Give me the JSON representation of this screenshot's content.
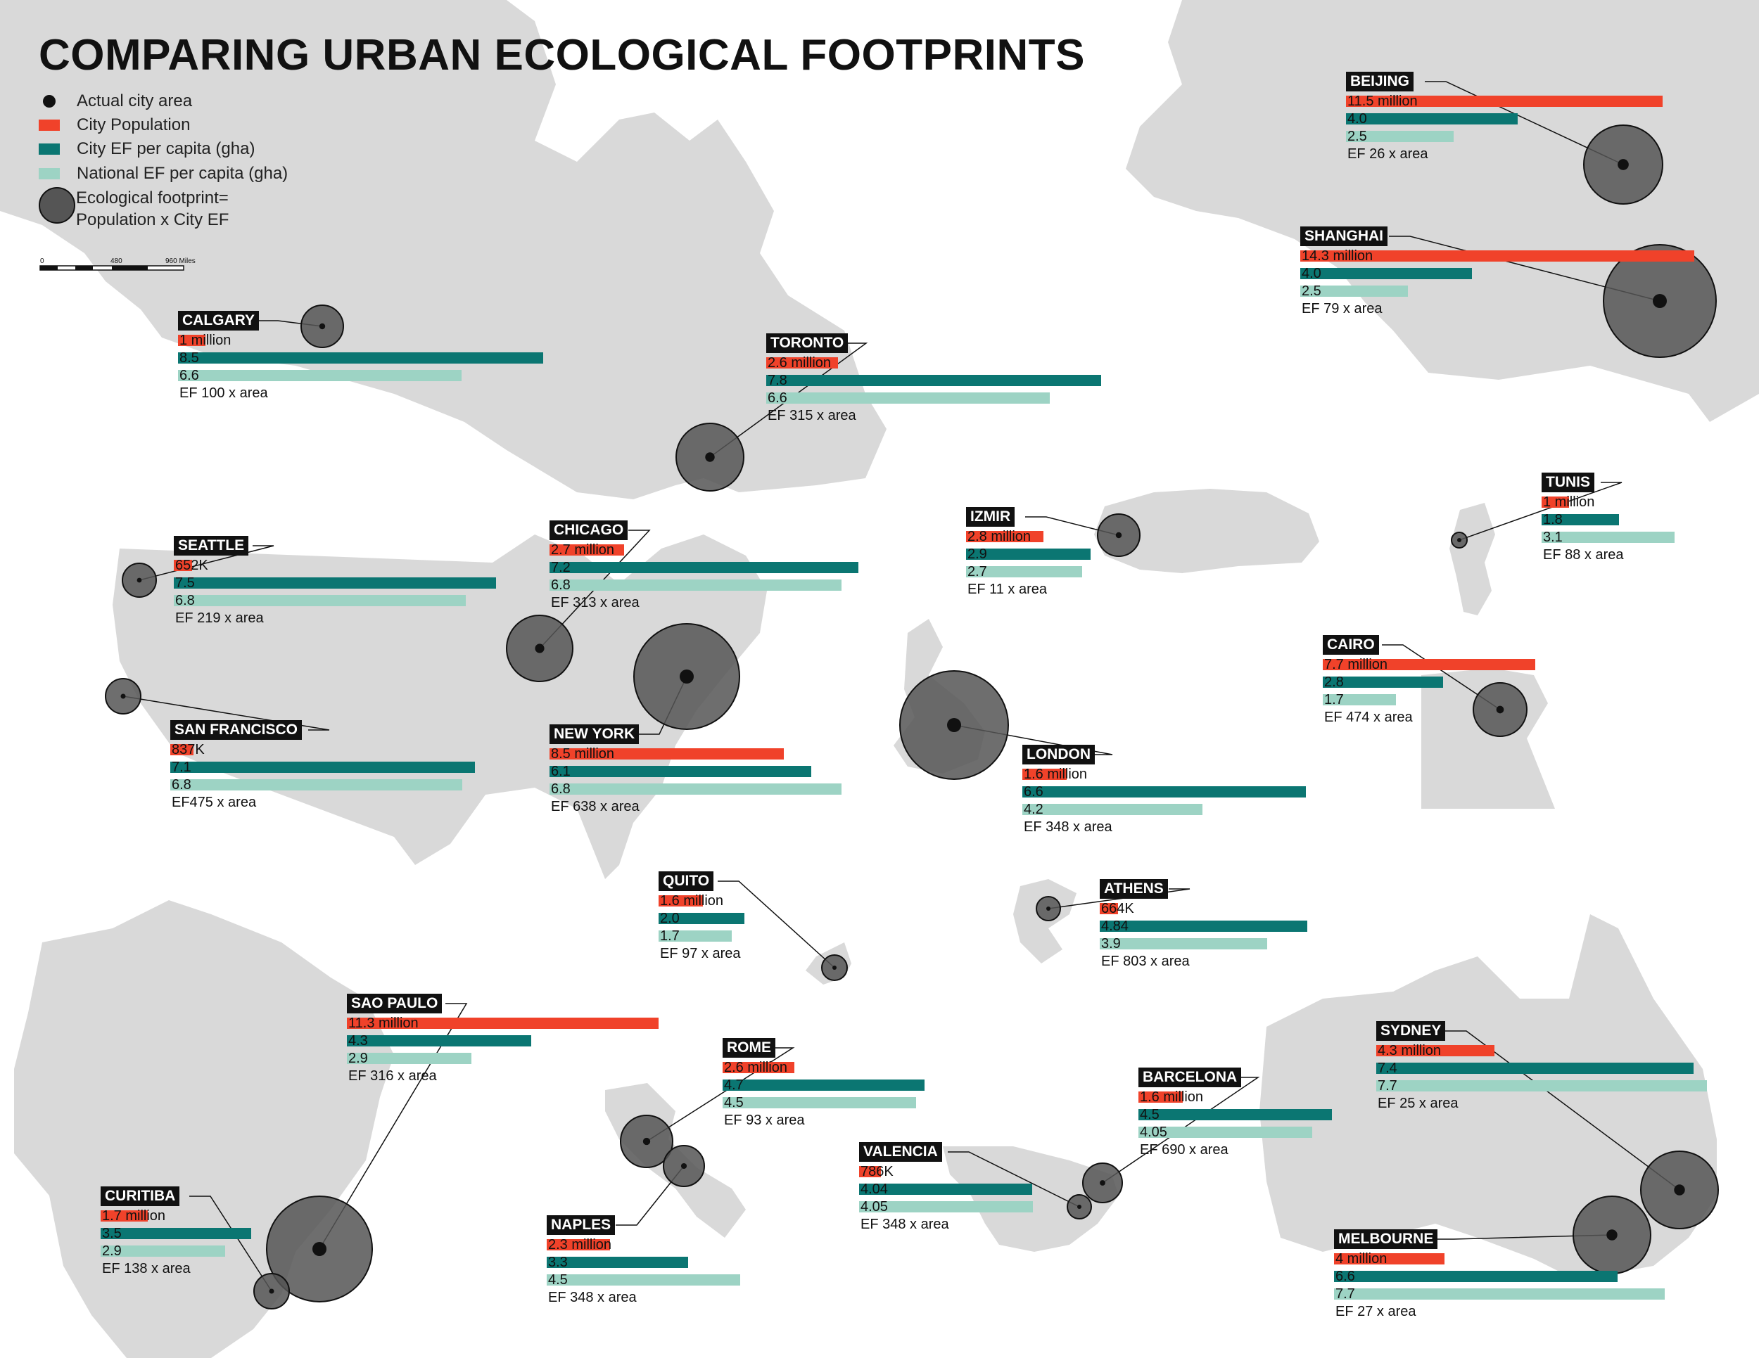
{
  "title": "COMPARING URBAN ECOLOGICAL FOOTPRINTS",
  "colors": {
    "population": "#f0422a",
    "city_ef": "#0b7672",
    "national_ef": "#9dd3c4",
    "land": "#d9d9d9",
    "footprint": "#555555",
    "label_bg": "#111111"
  },
  "legend": {
    "actual_area": "Actual city area",
    "population": "City Population",
    "city_ef": "City EF per capita (gha)",
    "national_ef": "National EF per capita (gha)",
    "footprint_line1": "Ecological footprint=",
    "footprint_line2": "Population x City EF"
  },
  "scale": {
    "t0": "0",
    "t1": "480",
    "t2": "960 Miles"
  },
  "chart_data": {
    "type": "bar",
    "title": "COMPARING URBAN ECOLOGICAL FOOTPRINTS",
    "series_names": [
      "City Population",
      "City EF per capita (gha)",
      "National EF per capita (gha)"
    ],
    "cities": [
      {
        "id": "calgary",
        "name": "CALGARY",
        "population": 1000000,
        "pop_label": "1 million",
        "city_ef": 8.5,
        "city_ef_label": "8.5",
        "national_ef": 6.6,
        "national_ef_label": "6.6",
        "ef_text": "EF 100 x area"
      },
      {
        "id": "toronto",
        "name": "TORONTO",
        "population": 2600000,
        "pop_label": "2.6 million",
        "city_ef": 7.8,
        "city_ef_label": "7.8",
        "national_ef": 6.6,
        "national_ef_label": "6.6",
        "ef_text": "EF 315 x area"
      },
      {
        "id": "seattle",
        "name": "SEATTLE",
        "population": 652000,
        "pop_label": "652K",
        "city_ef": 7.5,
        "city_ef_label": "7.5",
        "national_ef": 6.8,
        "national_ef_label": "6.8",
        "ef_text": "EF 219 x area"
      },
      {
        "id": "chicago",
        "name": "CHICAGO",
        "population": 2700000,
        "pop_label": "2.7 million",
        "city_ef": 7.2,
        "city_ef_label": "7.2",
        "national_ef": 6.8,
        "national_ef_label": "6.8",
        "ef_text": "EF 313 x area"
      },
      {
        "id": "sanfrancisco",
        "name": "SAN FRANCISCO",
        "population": 837000,
        "pop_label": "837K",
        "city_ef": 7.1,
        "city_ef_label": "7.1",
        "national_ef": 6.8,
        "national_ef_label": "6.8",
        "ef_text": "EF475 x area"
      },
      {
        "id": "newyork",
        "name": "NEW YORK",
        "population": 8500000,
        "pop_label": "8.5 million",
        "city_ef": 6.1,
        "city_ef_label": "6.1",
        "national_ef": 6.8,
        "national_ef_label": "6.8",
        "ef_text": "EF 638 x area"
      },
      {
        "id": "beijing",
        "name": "BEIJING",
        "population": 11500000,
        "pop_label": "11.5 million",
        "city_ef": 4.0,
        "city_ef_label": "4.0",
        "national_ef": 2.5,
        "national_ef_label": "2.5",
        "ef_text": "EF 26 x area"
      },
      {
        "id": "shanghai",
        "name": "SHANGHAI",
        "population": 14300000,
        "pop_label": "14.3 million",
        "city_ef": 4.0,
        "city_ef_label": "4.0",
        "national_ef": 2.5,
        "national_ef_label": "2.5",
        "ef_text": "EF 79 x area"
      },
      {
        "id": "izmir",
        "name": "IZMIR",
        "population": 2800000,
        "pop_label": "2.8 million",
        "city_ef": 2.9,
        "city_ef_label": "2.9",
        "national_ef": 2.7,
        "national_ef_label": "2.7",
        "ef_text": "EF 11 x area"
      },
      {
        "id": "tunis",
        "name": "TUNIS",
        "population": 1000000,
        "pop_label": "1 million",
        "city_ef": 1.8,
        "city_ef_label": "1.8",
        "national_ef": 3.1,
        "national_ef_label": "3.1",
        "ef_text": "EF 88 x area"
      },
      {
        "id": "cairo",
        "name": "CAIRO",
        "population": 7700000,
        "pop_label": "7.7 million",
        "city_ef": 2.8,
        "city_ef_label": "2.8",
        "national_ef": 1.7,
        "national_ef_label": "1.7",
        "ef_text": "EF 474 x area"
      },
      {
        "id": "london",
        "name": "LONDON",
        "population": 1600000,
        "pop_label": "1.6 million",
        "city_ef": 6.6,
        "city_ef_label": "6.6",
        "national_ef": 4.2,
        "national_ef_label": "4.2",
        "ef_text": "EF 348 x area"
      },
      {
        "id": "quito",
        "name": "QUITO",
        "population": 1600000,
        "pop_label": "1.6 million",
        "city_ef": 2.0,
        "city_ef_label": "2.0",
        "national_ef": 1.7,
        "national_ef_label": "1.7",
        "ef_text": "EF 97 x area"
      },
      {
        "id": "athens",
        "name": "ATHENS",
        "population": 664000,
        "pop_label": "664K",
        "city_ef": 4.84,
        "city_ef_label": "4.84",
        "national_ef": 3.9,
        "national_ef_label": "3.9",
        "ef_text": "EF 803 x area"
      },
      {
        "id": "saopaulo",
        "name": "SAO PAULO",
        "population": 11300000,
        "pop_label": "11.3 million",
        "city_ef": 4.3,
        "city_ef_label": "4.3",
        "national_ef": 2.9,
        "national_ef_label": "2.9",
        "ef_text": "EF 316 x area"
      },
      {
        "id": "rome",
        "name": "ROME",
        "population": 2600000,
        "pop_label": "2.6 million",
        "city_ef": 4.7,
        "city_ef_label": "4.7",
        "national_ef": 4.5,
        "national_ef_label": "4.5",
        "ef_text": "EF 93 x area"
      },
      {
        "id": "barcelona",
        "name": "BARCELONA",
        "population": 1600000,
        "pop_label": "1.6 million",
        "city_ef": 4.5,
        "city_ef_label": "4.5",
        "national_ef": 4.05,
        "national_ef_label": "4.05",
        "ef_text": "EF 690 x area"
      },
      {
        "id": "valencia",
        "name": "VALENCIA",
        "population": 786000,
        "pop_label": "786K",
        "city_ef": 4.04,
        "city_ef_label": "4.04",
        "national_ef": 4.05,
        "national_ef_label": "4.05",
        "ef_text": "EF 348 x area"
      },
      {
        "id": "sydney",
        "name": "SYDNEY",
        "population": 4300000,
        "pop_label": "4.3 million",
        "city_ef": 7.4,
        "city_ef_label": "7.4",
        "national_ef": 7.7,
        "national_ef_label": "7.7",
        "ef_text": "EF 25 x area"
      },
      {
        "id": "curitiba",
        "name": "CURITIBA",
        "population": 1700000,
        "pop_label": "1.7 million",
        "city_ef": 3.5,
        "city_ef_label": "3.5",
        "national_ef": 2.9,
        "national_ef_label": "2.9",
        "ef_text": "EF 138 x area"
      },
      {
        "id": "naples",
        "name": "NAPLES",
        "population": 2300000,
        "pop_label": "2.3 million",
        "city_ef": 3.3,
        "city_ef_label": "3.3",
        "national_ef": 4.5,
        "national_ef_label": "4.5",
        "ef_text": "EF 348 x area"
      },
      {
        "id": "melbourne",
        "name": "MELBOURNE",
        "population": 4000000,
        "pop_label": "4 million",
        "city_ef": 6.6,
        "city_ef_label": "6.6",
        "national_ef": 7.7,
        "national_ef_label": "7.7",
        "ef_text": "EF 27 x area"
      }
    ]
  }
}
